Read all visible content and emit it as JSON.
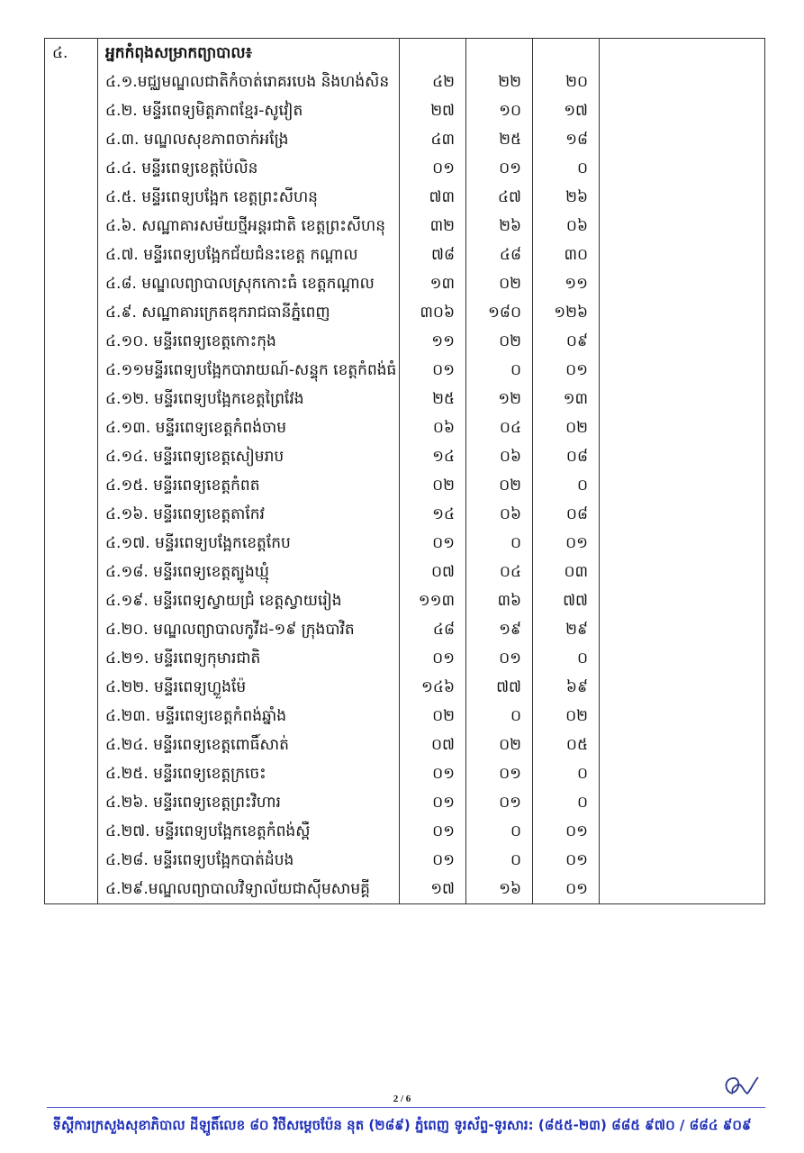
{
  "section": {
    "number": "៤.",
    "heading": "អ្នកកំពុងសម្រាកព្យាបាល៖"
  },
  "rows": [
    {
      "name": "៤.១.មជ្ឈមណ្ឌលជាតិកំចាត់រោគរបេង និងហង់សិន",
      "a": "៤២",
      "b": "២២",
      "c": "២០"
    },
    {
      "name": "៤.២. មន្ទីរពេទ្យមិត្តភាពខ្មែរ-សូវៀត",
      "a": "២៧",
      "b": "១០",
      "c": "១៧"
    },
    {
      "name": "៤.៣. មណ្ឌលសុខភាពចាក់អង្រែ",
      "a": "៤៣",
      "b": "២៥",
      "c": "១៨"
    },
    {
      "name": "៤.៤. មន្ទីរពេទ្យខេត្តប៉ៃលិន",
      "a": "០១",
      "b": "០១",
      "c": "០"
    },
    {
      "name": "៤.៥. មន្ទីរពេទ្យបង្អែក ខេត្តព្រះសីហនុ",
      "a": "៧៣",
      "b": "៤៧",
      "c": "២៦"
    },
    {
      "name": "៤.៦.  សណ្ឋាគារសម័យថ្មីអន្តរជាតិ  ខេត្តព្រះសីហនុ",
      "a": "៣២",
      "b": "២៦",
      "c": "០៦"
    },
    {
      "name": "៤.៧. មន្ទីរពេទ្យបង្អែកជ័យជំនះខេត្ត កណ្តាល",
      "a": "៧៨",
      "b": "៤៨",
      "c": "៣០"
    },
    {
      "name": "៤.៨. មណ្ឌលព្យាបាលស្រុកកោះធំ ខេត្តកណ្តាល",
      "a": "១៣",
      "b": "០២",
      "c": "១១"
    },
    {
      "name": "៤.៩. សណ្ឋាគារក្រេតឌុករាជធានីភ្នំពេញ",
      "a": "៣០៦",
      "b": "១៨០",
      "c": "១២៦"
    },
    {
      "name": "៤.១០. មន្ទីរពេទ្យខេត្តកោះកុង",
      "a": "១១",
      "b": "០២",
      "c": "០៩"
    },
    {
      "name": "៤.១១មន្ទីរពេទ្យបង្អែកបារាយណ៍-សន្ទុក ខេត្តកំពង់ធំ",
      "a": "០១",
      "b": "០",
      "c": "០១"
    },
    {
      "name": "៤.១២. មន្ទីរពេទ្យបង្អែកខេត្តព្រៃវែង",
      "a": "២៥",
      "b": "១២",
      "c": "១៣"
    },
    {
      "name": "៤.១៣. មន្ទីរពេទ្យខេត្តកំពង់ចាម",
      "a": "០៦",
      "b": "០៤",
      "c": "០២"
    },
    {
      "name": "៤.១៤. មន្ទីរពេទ្យខេត្តសៀមរាប",
      "a": "១៤",
      "b": "០៦",
      "c": "០៨"
    },
    {
      "name": "៤.១៥. មន្ទីរពេទ្យខេត្តកំពត",
      "a": "០២",
      "b": "០២",
      "c": "០"
    },
    {
      "name": "៤.១៦. មន្ទីរពេទ្យខេត្តតាកែវ",
      "a": "១៤",
      "b": "០៦",
      "c": "០៨"
    },
    {
      "name": "៤.១៧. មន្ទីរពេទ្យបង្អែកខេត្តកែប",
      "a": "០១",
      "b": "០",
      "c": "០១"
    },
    {
      "name": "៤.១៨. មន្ទីរពេទ្យខេត្តត្បូងឃ្មុំ",
      "a": "០៧",
      "b": "០៤",
      "c": "០៣"
    },
    {
      "name": "៤.១៩. មន្ទីរពេទ្យស្វាយជ្រំ ខេត្តស្វាយរៀង",
      "a": "១១៣",
      "b": "៣៦",
      "c": "៧៧"
    },
    {
      "name": "៤.២០. មណ្ឌលព្យាបាលកូវីដ-១៩ ក្រុងបាវិត",
      "a": "៤៨",
      "b": "១៩",
      "c": "២៩"
    },
    {
      "name": "៤.២១. មន្ទីរពេទ្យកុមារជាតិ",
      "a": "០១",
      "b": "០១",
      "c": "០"
    },
    {
      "name": "៤.២២. មន្ទីរពេទ្យហ្លួងម៉ែ",
      "a": "១៤៦",
      "b": "៧៧",
      "c": "៦៩"
    },
    {
      "name": "៤.២៣. មន្ទីរពេទ្យខេត្តកំពង់ឆ្នាំង",
      "a": "០២",
      "b": "០",
      "c": "០២"
    },
    {
      "name": "៤.២៤. មន្ទីរពេទ្យខេត្តពោធិ៍សាត់",
      "a": "០៧",
      "b": "០២",
      "c": "០៥"
    },
    {
      "name": "៤.២៥. មន្ទីរពេទ្យខេត្តក្រចេះ",
      "a": "០១",
      "b": "០១",
      "c": "០"
    },
    {
      "name": "៤.២៦. មន្ទីរពេទ្យខេត្តព្រះវិហារ",
      "a": "០១",
      "b": "០១",
      "c": "០"
    },
    {
      "name": "៤.២៧. មន្ទីរពេទ្យបង្អែកខេត្តកំពង់ស្ពឺ",
      "a": "០១",
      "b": "០",
      "c": "០១"
    },
    {
      "name": "៤.២៨. មន្ទីរពេទ្យបង្អែកបាត់ដំបង",
      "a": "០១",
      "b": "០",
      "c": "០១"
    },
    {
      "name": "៤.២៩.មណ្ឌលព្យាបាលវិទ្យាល័យជាស៊ីមសាមគ្គី",
      "a": "១៧",
      "b": "១៦",
      "c": "០១"
    }
  ],
  "footer": {
    "page": "2 / 6",
    "address": "ទីស្តីការក្រសួងសុខាភិបាល ដីឡូតិ៍លេខ ៨០ វិថីសម្តេចប៉ែន នុត (២៨៩) ភ្នំពេញ ទូរស័ព្ទ-ទូរសារ: (៨៥៥-២៣) ៨៨៥ ៩៧០ / ៨៨៤ ៩០៩",
    "color": "#1e2fb8"
  }
}
